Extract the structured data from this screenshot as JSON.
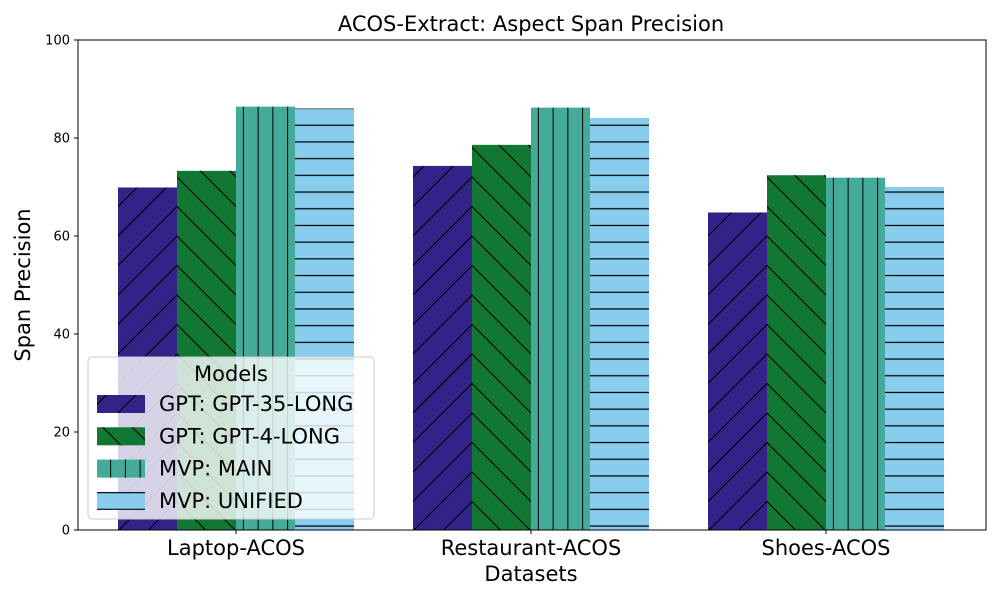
{
  "chart_data": {
    "type": "bar",
    "title": "ACOS-Extract: Aspect Span Precision",
    "xlabel": "Datasets",
    "ylabel": "Span Precision",
    "ylim": [
      0,
      100
    ],
    "yticks": [
      0,
      20,
      40,
      60,
      80,
      100
    ],
    "categories": [
      "Laptop-ACOS",
      "Restaurant-ACOS",
      "Shoes-ACOS"
    ],
    "series": [
      {
        "name": "GPT: GPT-35-LONG",
        "values": [
          69.9,
          74.3,
          64.8
        ],
        "color": "#332288",
        "hatch": "diagonal-up"
      },
      {
        "name": "GPT: GPT-4-LONG",
        "values": [
          73.3,
          78.6,
          72.4
        ],
        "color": "#117733",
        "hatch": "diagonal-down"
      },
      {
        "name": "MVP: MAIN",
        "values": [
          86.4,
          86.2,
          71.9
        ],
        "color": "#44AA99",
        "hatch": "vertical"
      },
      {
        "name": "MVP: UNIFIED",
        "values": [
          86.0,
          84.1,
          70.0
        ],
        "color": "#88CCEE",
        "hatch": "horizontal"
      }
    ],
    "legend": {
      "title": "Models",
      "position": "lower-left"
    },
    "grid": false
  }
}
